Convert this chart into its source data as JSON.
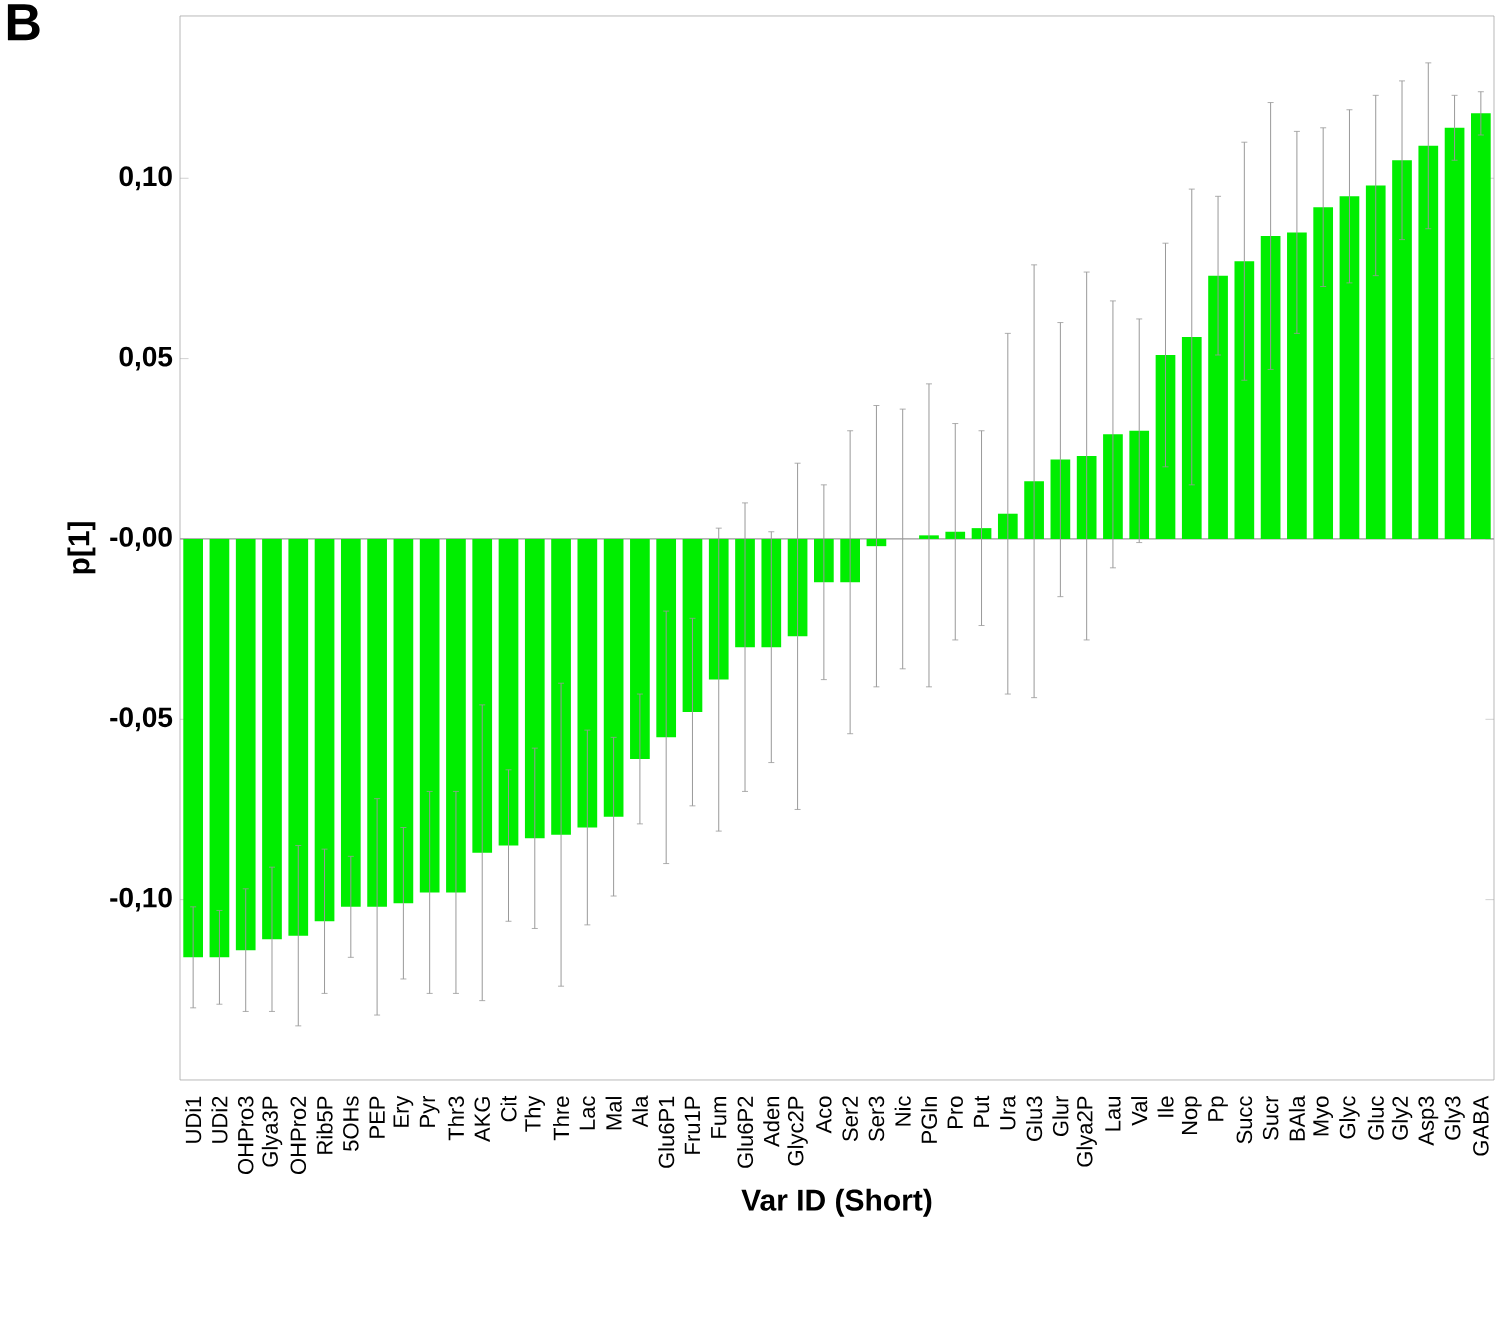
{
  "chart_data": {
    "type": "bar",
    "xlabel": "Var ID (Short)",
    "ylabel": "p[1]",
    "color": "#00ee00",
    "annotations": [
      "B"
    ],
    "categories": [
      "UDi1",
      "UDi2",
      "OHPro3",
      "Glya3P",
      "OHPro2",
      "Rib5P",
      "5OHs",
      "PEP",
      "Ery",
      "Pyr",
      "Thr3",
      "AKG",
      "Cit",
      "Thy",
      "Thre",
      "Lac",
      "Mal",
      "Ala",
      "Glu6P1",
      "Fru1P",
      "Fum",
      "Glu6P2",
      "Aden",
      "Glyc2P",
      "Aco",
      "Ser2",
      "Ser3",
      "Nic",
      "PGln",
      "Pro",
      "Put",
      "Ura",
      "Glu3",
      "Glur",
      "Glya2P",
      "Lau",
      "Val",
      "Ile",
      "Nop",
      "Pp",
      "Succ",
      "Sucr",
      "BAla",
      "Myo",
      "Glyc",
      "Gluc",
      "Gly2",
      "Asp3",
      "Gly3",
      "GABA"
    ],
    "values": [
      -0.116,
      -0.116,
      -0.114,
      -0.111,
      -0.11,
      -0.106,
      -0.102,
      -0.102,
      -0.101,
      -0.098,
      -0.098,
      -0.087,
      -0.085,
      -0.083,
      -0.082,
      -0.08,
      -0.077,
      -0.061,
      -0.055,
      -0.048,
      -0.039,
      -0.03,
      -0.03,
      -0.027,
      -0.012,
      -0.012,
      -0.002,
      0.0,
      0.001,
      0.002,
      0.003,
      0.007,
      0.016,
      0.022,
      0.023,
      0.029,
      0.03,
      0.051,
      0.056,
      0.073,
      0.077,
      0.084,
      0.085,
      0.092,
      0.095,
      0.098,
      0.105,
      0.109,
      0.114,
      0.118
    ],
    "errors": [
      0.014,
      0.013,
      0.017,
      0.02,
      0.025,
      0.02,
      0.014,
      0.03,
      0.021,
      0.028,
      0.028,
      0.041,
      0.021,
      0.025,
      0.042,
      0.027,
      0.022,
      0.018,
      0.035,
      0.026,
      0.042,
      0.04,
      0.032,
      0.048,
      0.027,
      0.042,
      0.039,
      0.036,
      0.042,
      0.03,
      0.027,
      0.05,
      0.06,
      0.038,
      0.051,
      0.037,
      0.031,
      0.031,
      0.041,
      0.022,
      0.033,
      0.037,
      0.028,
      0.022,
      0.024,
      0.025,
      0.022,
      0.023,
      0.009,
      0.006
    ],
    "ylim": [
      -0.15,
      0.145
    ],
    "yticks": [
      {
        "value": -0.1,
        "label": "-0,10"
      },
      {
        "value": -0.05,
        "label": "-0,05"
      },
      {
        "value": 0,
        "label": "-0,00"
      },
      {
        "value": 0.05,
        "label": "0,05"
      },
      {
        "value": 0.1,
        "label": "0,10"
      }
    ],
    "ref_lines": [
      {
        "axis": "y",
        "value": 0,
        "color": "#999999"
      }
    ]
  }
}
